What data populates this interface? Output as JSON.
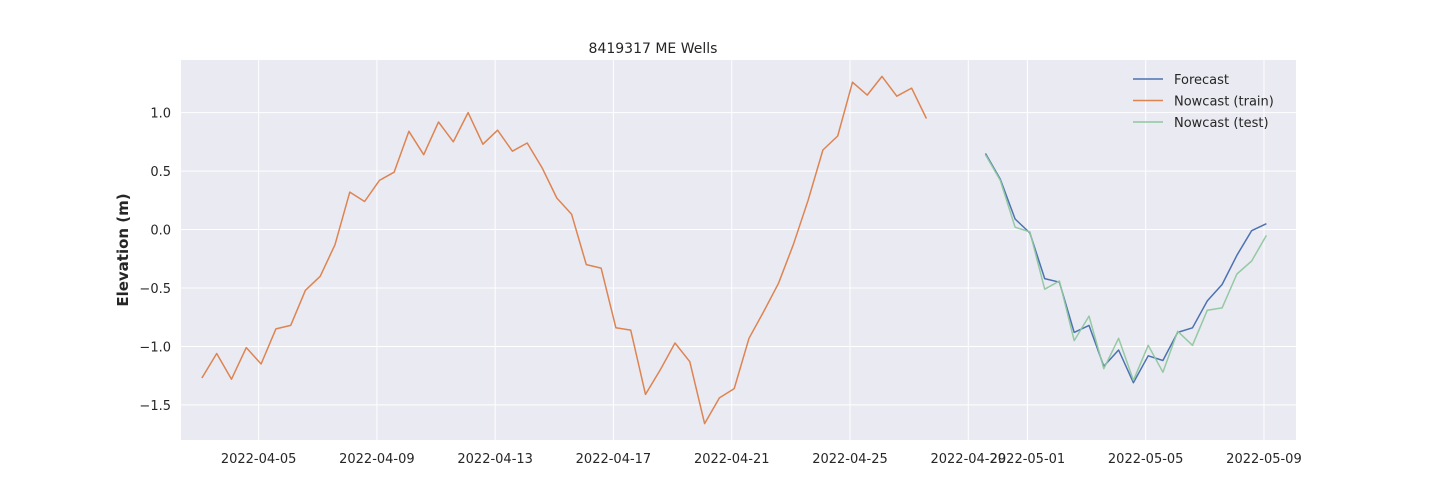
{
  "chart_data": {
    "type": "line",
    "title": "8419317 ME Wells",
    "xlabel": "",
    "ylabel": "Elevation (m)",
    "xlim": [
      "2022-04-02T09:00",
      "2022-05-10T02:00"
    ],
    "ylim": [
      -1.8,
      1.45
    ],
    "xticks": [
      "2022-04-05",
      "2022-04-09",
      "2022-04-13",
      "2022-04-17",
      "2022-04-21",
      "2022-04-25",
      "2022-04-29",
      "2022-05-01",
      "2022-05-05",
      "2022-05-09"
    ],
    "yticks": [
      -1.5,
      -1.0,
      -0.5,
      0.0,
      0.5,
      1.0
    ],
    "ytick_labels": [
      "−1.5",
      "−1.0",
      "−0.5",
      "0.0",
      "0.5",
      "1.0"
    ],
    "grid": true,
    "legend_position": "top-right",
    "series": [
      {
        "name": "Forecast",
        "color": "#4c72b0",
        "x": [
          "2022-04-29T14:00",
          "2022-04-30T02:00",
          "2022-04-30T14:00",
          "2022-05-01T02:00",
          "2022-05-01T14:00",
          "2022-05-02T02:00",
          "2022-05-02T14:00",
          "2022-05-03T02:00",
          "2022-05-03T14:00",
          "2022-05-04T02:00",
          "2022-05-04T14:00",
          "2022-05-05T02:00",
          "2022-05-05T14:00",
          "2022-05-06T02:00",
          "2022-05-06T14:00",
          "2022-05-07T02:00",
          "2022-05-07T14:00",
          "2022-05-08T02:00",
          "2022-05-08T14:00",
          "2022-05-09T02:00",
          "2022-05-09T14:00",
          "2022-05-10T02:00"
        ],
        "y": [
          0.65,
          0.43,
          0.09,
          -0.03,
          -0.42,
          -0.45,
          -0.88,
          -0.82,
          -1.17,
          -1.03,
          -1.31,
          -1.08,
          -1.12,
          -0.88,
          -0.84,
          -0.61,
          -0.47,
          -0.22,
          -0.01,
          0.05,
          null,
          null
        ]
      },
      {
        "name": "Nowcast (train)",
        "color": "#dd8452",
        "x": [
          "2022-04-03T02:00",
          "2022-04-03T14:00",
          "2022-04-04T02:00",
          "2022-04-04T14:00",
          "2022-04-05T02:00",
          "2022-04-05T14:00",
          "2022-04-06T02:00",
          "2022-04-06T14:00",
          "2022-04-07T02:00",
          "2022-04-07T14:00",
          "2022-04-08T02:00",
          "2022-04-08T14:00",
          "2022-04-09T02:00",
          "2022-04-09T14:00",
          "2022-04-10T02:00",
          "2022-04-10T14:00",
          "2022-04-11T02:00",
          "2022-04-11T14:00",
          "2022-04-12T02:00",
          "2022-04-12T14:00",
          "2022-04-13T02:00",
          "2022-04-13T14:00",
          "2022-04-14T02:00",
          "2022-04-14T14:00",
          "2022-04-15T02:00",
          "2022-04-15T14:00",
          "2022-04-16T02:00",
          "2022-04-16T14:00",
          "2022-04-17T02:00",
          "2022-04-17T14:00",
          "2022-04-18T02:00",
          "2022-04-18T14:00",
          "2022-04-19T02:00",
          "2022-04-19T14:00",
          "2022-04-20T02:00",
          "2022-04-20T14:00",
          "2022-04-21T02:00",
          "2022-04-21T14:00",
          "2022-04-22T02:00",
          "2022-04-22T14:00",
          "2022-04-23T02:00",
          "2022-04-23T14:00",
          "2022-04-24T02:00",
          "2022-04-24T14:00",
          "2022-04-25T02:00",
          "2022-04-25T14:00",
          "2022-04-26T02:00",
          "2022-04-26T14:00",
          "2022-04-27T02:00",
          "2022-04-27T14:00",
          "2022-04-28T02:00",
          "2022-04-28T14:00",
          "2022-04-29T02:00"
        ],
        "y": [
          -1.27,
          -1.06,
          -1.28,
          -1.01,
          -1.15,
          -0.85,
          -0.82,
          -0.52,
          -0.4,
          -0.13,
          0.32,
          0.24,
          0.42,
          0.49,
          0.84,
          0.64,
          0.92,
          0.75,
          1.0,
          0.73,
          0.85,
          0.67,
          0.74,
          0.53,
          0.27,
          0.13,
          -0.3,
          -0.33,
          -0.84,
          -0.86,
          -1.41,
          -1.2,
          -0.97,
          -1.13,
          -1.66,
          -1.44,
          -1.36,
          -0.93,
          -0.7,
          -0.46,
          -0.13,
          0.25,
          0.68,
          0.8,
          1.26,
          1.15,
          1.31,
          1.14,
          1.21,
          0.95,
          null,
          null,
          null
        ]
      },
      {
        "name": "Nowcast (test)",
        "color": "#8fc79e",
        "x": [
          "2022-04-29T14:00",
          "2022-04-30T02:00",
          "2022-04-30T14:00",
          "2022-05-01T02:00",
          "2022-05-01T14:00",
          "2022-05-02T02:00",
          "2022-05-02T14:00",
          "2022-05-03T02:00",
          "2022-05-03T14:00",
          "2022-05-04T02:00",
          "2022-05-04T14:00",
          "2022-05-05T02:00",
          "2022-05-05T14:00",
          "2022-05-06T02:00",
          "2022-05-06T14:00",
          "2022-05-07T02:00",
          "2022-05-07T14:00",
          "2022-05-08T02:00",
          "2022-05-08T14:00",
          "2022-05-09T02:00"
        ],
        "y": [
          0.64,
          0.42,
          0.02,
          -0.02,
          -0.51,
          -0.44,
          -0.95,
          -0.74,
          -1.19,
          -0.93,
          -1.29,
          -0.99,
          -1.22,
          -0.87,
          -0.99,
          -0.69,
          -0.67,
          -0.38,
          -0.27,
          -0.05
        ]
      }
    ]
  }
}
